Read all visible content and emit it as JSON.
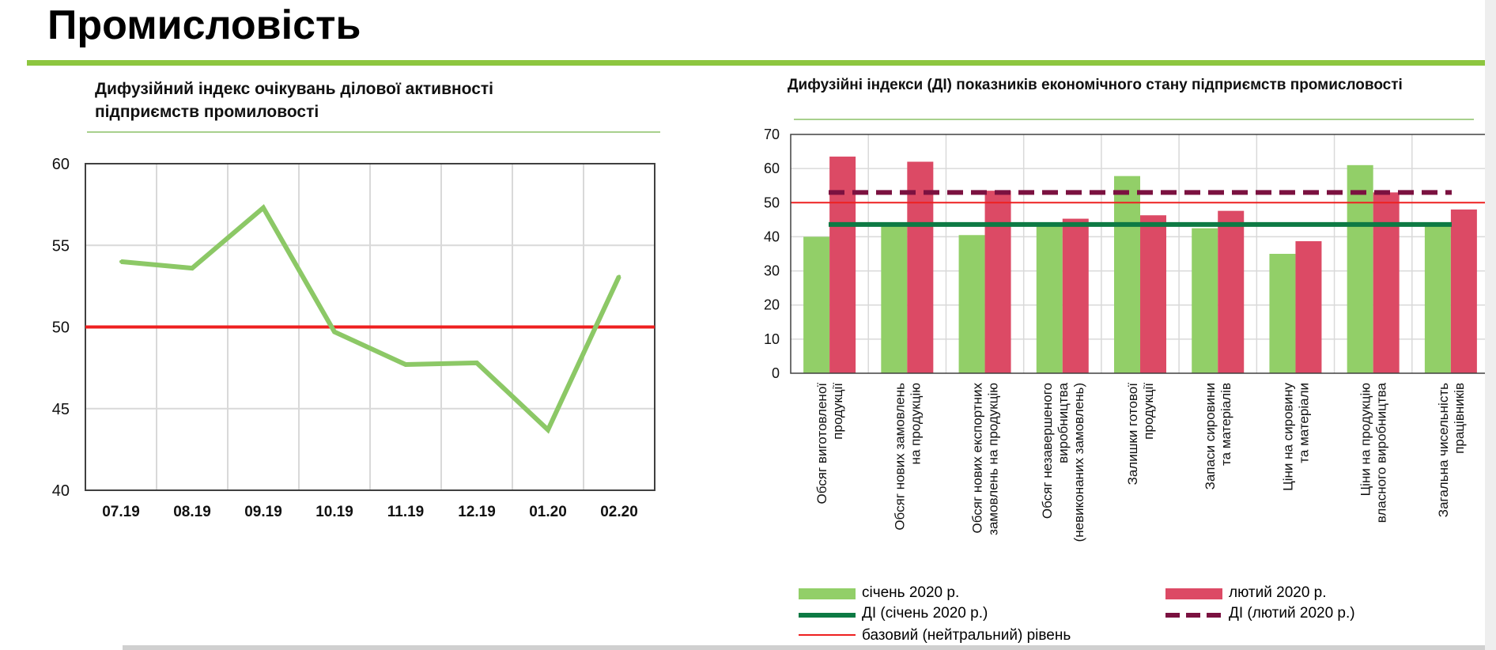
{
  "page": {
    "title": "Промисловість"
  },
  "colors": {
    "accent_green": "#8dc63f",
    "line_green": "#8cc866",
    "bar_jan": "#92cf68",
    "bar_feb": "#dc4a65",
    "di_jan": "#0d7a44",
    "di_feb": "#7b1140",
    "baseline": "#ee2020"
  },
  "chart_data": [
    {
      "type": "line",
      "title": "Дифузійний  індекс очікувань ділової активності підприємств  промиловості",
      "title_lines": [
        "Дифузійний  індекс очікувань ділової активності",
        "підприємств  промиловості"
      ],
      "categories": [
        "07.19",
        "08.19",
        "09.19",
        "10.19",
        "11.19",
        "12.19",
        "01.20",
        "02.20"
      ],
      "series": [
        {
          "values": [
            54.0,
            53.6,
            57.3,
            49.7,
            47.7,
            47.8,
            43.7,
            53.1
          ]
        }
      ],
      "reference_line": 50,
      "ylim": [
        40,
        60
      ],
      "yticks": [
        40,
        45,
        50,
        55,
        60
      ],
      "grid": true
    },
    {
      "type": "bar",
      "title": "Дифузійні індекси (ДІ) показників економічного стану підприємств промисловості",
      "categories": [
        [
          "Обсяг виготовленої",
          "продукції"
        ],
        [
          "Обсяг нових замовлень",
          "на продукцію"
        ],
        [
          "Обсяг нових експортних",
          "замовлень на продукцію"
        ],
        [
          "Обсяг незавершеного",
          "виробництва",
          "(невиконаних замовлень)"
        ],
        [
          "Залишки  готової",
          "продукції"
        ],
        [
          "Запаси сировини",
          "та матеріалів"
        ],
        [
          "Ціни на сировину",
          "та матеріали"
        ],
        [
          "Ціни на продукцію",
          "власного виробництва"
        ],
        [
          "Загальна  чисельність",
          "працівників"
        ]
      ],
      "series": [
        {
          "name": "січень 2020 р.",
          "values": [
            40.0,
            44.0,
            40.5,
            43.5,
            57.8,
            42.5,
            35.0,
            61.0,
            43.5
          ]
        },
        {
          "name": "лютий 2020 р.",
          "values": [
            63.5,
            62.0,
            53.5,
            45.3,
            46.3,
            47.6,
            38.7,
            53.0,
            48.0
          ]
        }
      ],
      "reference_lines": [
        {
          "name": "ДІ (січень 2020 р.)",
          "value": 43.6
        },
        {
          "name": "ДІ (лютий 2020 р.)",
          "value": 53.0
        },
        {
          "name": "базовий (нейтральний) рівень",
          "value": 50
        }
      ],
      "ylim": [
        0,
        70
      ],
      "yticks": [
        0,
        10,
        20,
        30,
        40,
        50,
        60,
        70
      ],
      "grid": true,
      "legend_position": "bottom"
    }
  ]
}
